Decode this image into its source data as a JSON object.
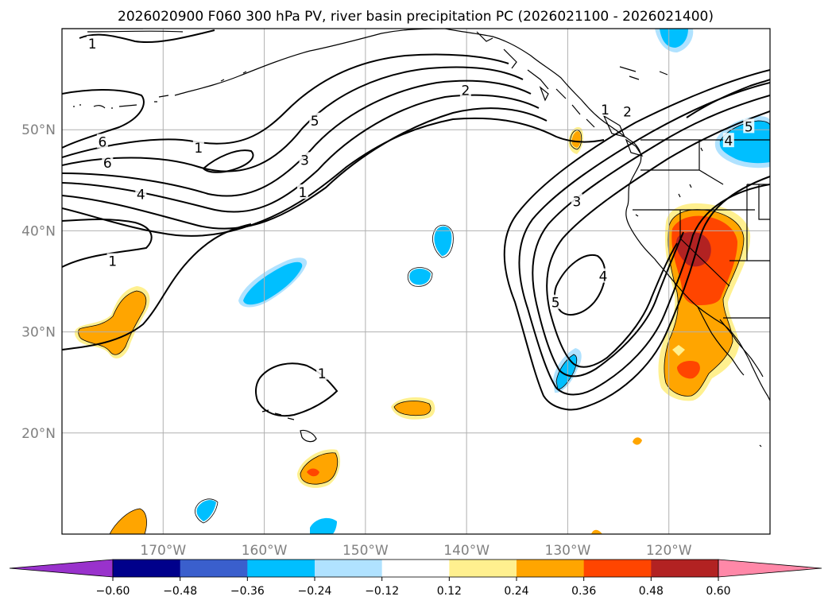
{
  "chart_data": {
    "type": "contour_map",
    "title": "2026020900 F060 300 hPa PV, river basin precipitation PC (2026021100 - 2026021400)",
    "lon_range": [
      -180,
      -110
    ],
    "lat_range": [
      10,
      60
    ],
    "x_ticks": [
      {
        "lon": -170,
        "label": "170°W"
      },
      {
        "lon": -160,
        "label": "160°W"
      },
      {
        "lon": -150,
        "label": "150°W"
      },
      {
        "lon": -140,
        "label": "140°W"
      },
      {
        "lon": -130,
        "label": "130°W"
      },
      {
        "lon": -120,
        "label": "120°W"
      }
    ],
    "y_ticks": [
      {
        "lat": 20,
        "label": "20°N"
      },
      {
        "lat": 30,
        "label": "30°N"
      },
      {
        "lat": 40,
        "label": "40°N"
      },
      {
        "lat": 50,
        "label": "50°N"
      }
    ],
    "pv_contour_labels": [
      {
        "text": "1",
        "lon": -177,
        "lat": 58.5
      },
      {
        "text": "6",
        "lon": -176,
        "lat": 48.8
      },
      {
        "text": "6",
        "lon": -175.5,
        "lat": 46.7
      },
      {
        "text": "4",
        "lon": -172.2,
        "lat": 43.6
      },
      {
        "text": "1",
        "lon": -175,
        "lat": 37
      },
      {
        "text": "1",
        "lon": -166.5,
        "lat": 48.2
      },
      {
        "text": "5",
        "lon": -155,
        "lat": 50.9
      },
      {
        "text": "3",
        "lon": -156,
        "lat": 47
      },
      {
        "text": "1",
        "lon": -156.2,
        "lat": 43.8
      },
      {
        "text": "2",
        "lon": -140.1,
        "lat": 53.9
      },
      {
        "text": "1",
        "lon": -126.3,
        "lat": 52
      },
      {
        "text": "2",
        "lon": -124.1,
        "lat": 51.8
      },
      {
        "text": "3",
        "lon": -129.1,
        "lat": 42.9
      },
      {
        "text": "4",
        "lon": -126.5,
        "lat": 35.5
      },
      {
        "text": "5",
        "lon": -131.2,
        "lat": 32.9
      },
      {
        "text": "1",
        "lon": -154.3,
        "lat": 25.9
      },
      {
        "text": "5",
        "lon": -112.1,
        "lat": 50.3
      },
      {
        "text": "4",
        "lon": -114.1,
        "lat": 48.9
      }
    ],
    "precip_pc_regions": [
      {
        "name": "western-us-positive",
        "lon": -117.5,
        "lat": 38,
        "value": 0.54
      },
      {
        "name": "baja-positive",
        "lon": -118.5,
        "lat": 28,
        "value": 0.36
      },
      {
        "name": "central-pacific-positive-20n",
        "lon": -145,
        "lat": 22.3,
        "value": 0.24
      },
      {
        "name": "hawaii-positive-17n",
        "lon": -155,
        "lat": 16.5,
        "value": 0.36
      },
      {
        "name": "west-pacific-positive-30n",
        "lon": -174,
        "lat": 31,
        "value": 0.24
      },
      {
        "name": "pnw-negative",
        "lon": -113,
        "lat": 48.5,
        "value": -0.36
      },
      {
        "name": "gulf-alaska-negative",
        "lon": -119,
        "lat": 59,
        "value": -0.36
      },
      {
        "name": "mid-pacific-negative-34n",
        "lon": -158.5,
        "lat": 34.5,
        "value": -0.36
      }
    ],
    "colorbar": {
      "extend": "both",
      "levels": [
        -0.6,
        -0.48,
        -0.36,
        -0.24,
        -0.12,
        0.12,
        0.24,
        0.36,
        0.48,
        0.6
      ],
      "tick_labels": [
        "−0.60",
        "−0.48",
        "−0.36",
        "−0.24",
        "−0.12",
        "0.12",
        "0.24",
        "0.36",
        "0.48",
        "0.60"
      ],
      "colors": [
        "#9932cc",
        "#00008b",
        "#3a5fcd",
        "#00bfff",
        "#b0e2ff",
        "#ffffff",
        "#fff08f",
        "#ffa500",
        "#ff4500",
        "#b22222",
        "#ff88a8"
      ]
    }
  }
}
